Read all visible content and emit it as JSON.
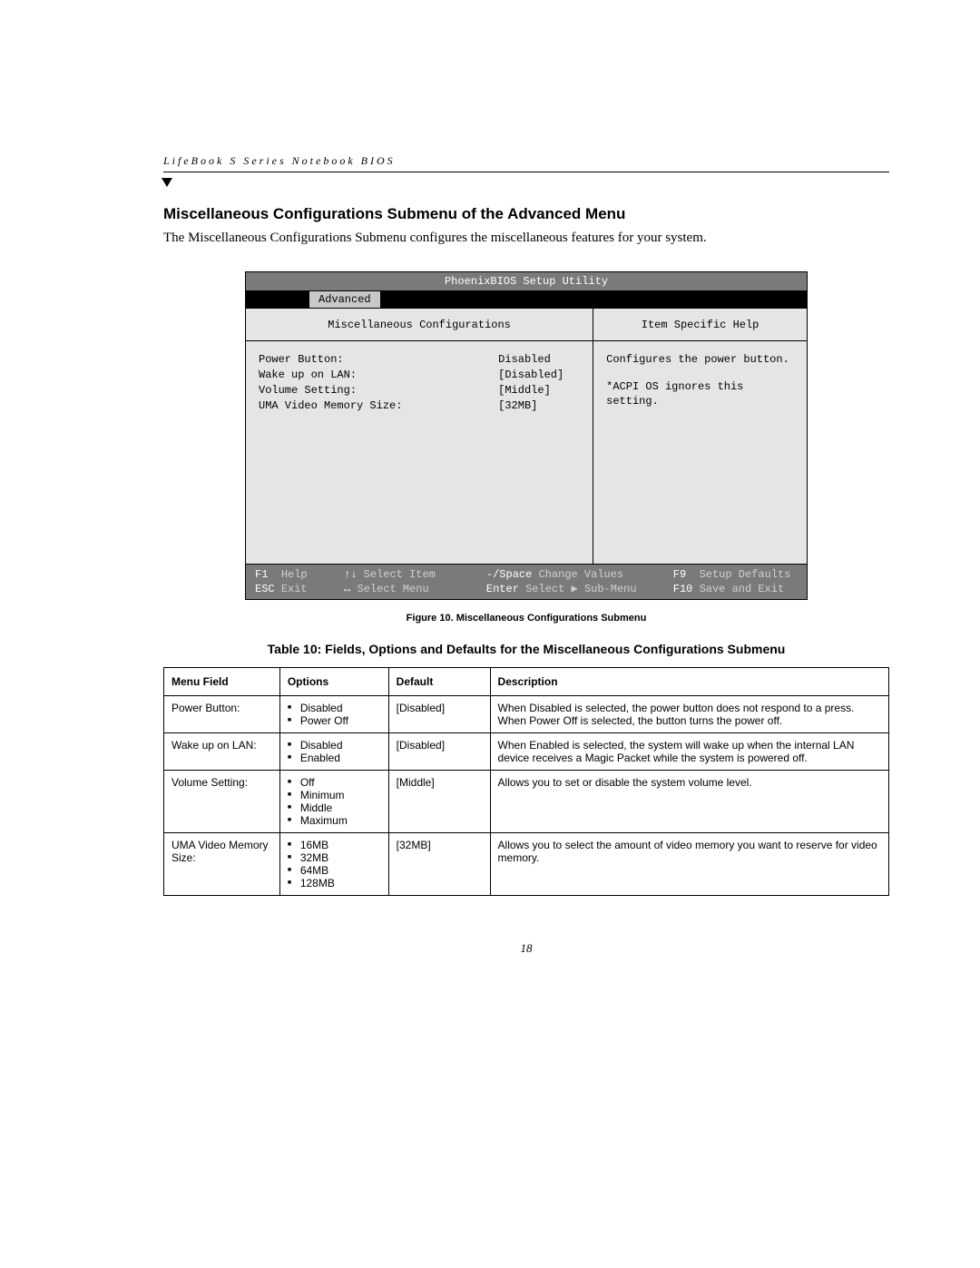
{
  "header": {
    "running_title": "LifeBook S Series Notebook BIOS"
  },
  "section": {
    "title": "Miscellaneous Configurations Submenu of the Advanced Menu",
    "intro": "The Miscellaneous Configurations Submenu configures the miscellaneous features for your system."
  },
  "bios": {
    "title": "PhoenixBIOS Setup Utility",
    "active_tab": "Advanced",
    "left_header": "Miscellaneous Configurations",
    "right_header": "Item Specific Help",
    "settings": [
      {
        "label": "Power Button:",
        "value": "Disabled",
        "selected": true
      },
      {
        "label": "Wake up on LAN:",
        "value": "[Disabled]",
        "selected": false
      },
      {
        "label": "Volume Setting:",
        "value": "[Middle]",
        "selected": false
      },
      {
        "label": "UMA Video Memory Size:",
        "value": "[32MB]",
        "selected": false
      }
    ],
    "help_lines": [
      "Configures the power button.",
      "*ACPI OS ignores this setting."
    ],
    "footer": {
      "r1": {
        "k1": "F1",
        "l1": "Help",
        "k2": "↑↓",
        "l2": "Select Item",
        "k3": "-/Space",
        "l3": "Change Values",
        "k4": "F9",
        "l4": "Setup Defaults"
      },
      "r2": {
        "k1": "ESC",
        "l1": "Exit",
        "k2": "↔",
        "l2": "Select Menu",
        "k3": "Enter",
        "l3": "Select ▶ Sub-Menu",
        "k4": "F10",
        "l4": "Save and Exit"
      }
    }
  },
  "figure_caption": "Figure 10.   Miscellaneous Configurations Submenu",
  "table_caption": "Table 10: Fields, Options and Defaults for the Miscellaneous Configurations Submenu",
  "table": {
    "headers": {
      "field": "Menu Field",
      "options": "Options",
      "default": "Default",
      "description": "Description"
    },
    "rows": [
      {
        "field": "Power Button:",
        "options": [
          "Disabled",
          "Power Off"
        ],
        "default": "[Disabled]",
        "description": "When Disabled is selected, the power button does not respond to a press. When Power Off is selected, the button turns the power off."
      },
      {
        "field": "Wake up on LAN:",
        "options": [
          "Disabled",
          "Enabled"
        ],
        "default": "[Disabled]",
        "description": "When Enabled is selected, the system will wake up when the internal LAN device receives a Magic Packet while the system is powered off."
      },
      {
        "field": "Volume Setting:",
        "options": [
          "Off",
          "Minimum",
          "Middle",
          "Maximum"
        ],
        "default": "[Middle]",
        "description": "Allows you to set or disable the system volume level."
      },
      {
        "field": "UMA Video Memory Size:",
        "options": [
          "16MB",
          "32MB",
          "64MB",
          "128MB"
        ],
        "default": "[32MB]",
        "description": "Allows you to select the amount of video memory you want to reserve for video memory."
      }
    ]
  },
  "page_number": "18"
}
